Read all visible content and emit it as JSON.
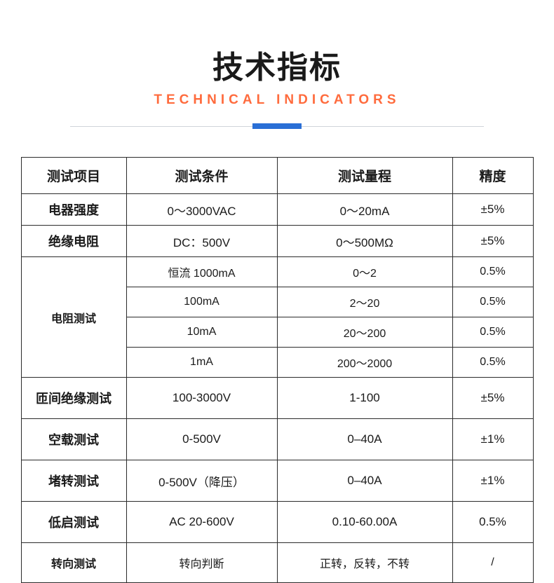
{
  "header": {
    "title_cn": "技术指标",
    "title_en": "TECHNICAL INDICATORS"
  },
  "colors": {
    "title": "#1a1a1a",
    "subtitle": "#ff6b3d",
    "divider_bar": "#2a6fd6",
    "divider_line": "#cfd4d9",
    "border": "#2b2b2b",
    "background": "#ffffff"
  },
  "table": {
    "columns": [
      "测试项目",
      "测试条件",
      "测试量程",
      "精度"
    ],
    "r0": {
      "item": "电器强度",
      "cond": "0～3000VAC",
      "range": "0～20mA",
      "acc": "±5%"
    },
    "r1": {
      "item": "绝缘电阻",
      "cond": "DC：500V",
      "range": "0～500MΩ",
      "acc": "±5%"
    },
    "r2": {
      "item": "电阻测试",
      "a": {
        "cond": "恒流  1000mA",
        "range": "0～2",
        "acc": "0.5%"
      },
      "b": {
        "cond": "100mA",
        "range": "2～20",
        "acc": "0.5%"
      },
      "c": {
        "cond": "10mA",
        "range": "20～200",
        "acc": "0.5%"
      },
      "d": {
        "cond": "1mA",
        "range": "200～2000",
        "acc": "0.5%"
      }
    },
    "r3": {
      "item": "匝间绝缘测试",
      "cond": "100-3000V",
      "range": "1-100",
      "acc": "±5%"
    },
    "r4": {
      "item": "空载测试",
      "cond": "0-500V",
      "range": "0–40A",
      "acc": "±1%"
    },
    "r5": {
      "item": "堵转测试",
      "cond": "0-500V（降压）",
      "range": "0–40A",
      "acc": "±1%"
    },
    "r6": {
      "item": "低启测试",
      "cond": "AC 20-600V",
      "range": "0.10-60.00A",
      "acc": "0.5%"
    },
    "r7": {
      "item": "转向测试",
      "cond": "转向判断",
      "range": "正转，反转，不转",
      "acc": "/"
    }
  }
}
